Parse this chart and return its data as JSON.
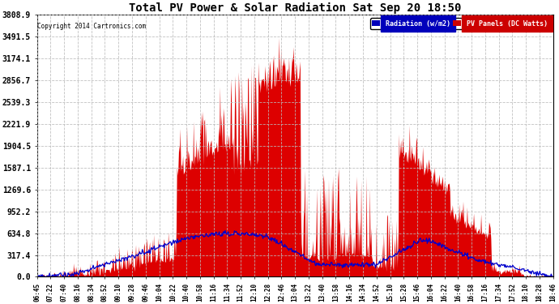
{
  "title": "Total PV Power & Solar Radiation Sat Sep 20 18:50",
  "copyright": "Copyright 2014 Cartronics.com",
  "background_color": "#ffffff",
  "plot_bg_color": "#ffffff",
  "grid_color": "#bbbbbb",
  "legend_radiation_label": "Radiation (w/m2)",
  "legend_pv_label": "PV Panels (DC Watts)",
  "legend_radiation_bg": "#0000bb",
  "legend_pv_bg": "#cc0000",
  "y_ticks": [
    0.0,
    317.4,
    634.8,
    952.2,
    1269.6,
    1587.1,
    1904.5,
    2221.9,
    2539.3,
    2856.7,
    3174.1,
    3491.5,
    3808.9
  ],
  "y_max": 3808.9,
  "pv_color": "#dd0000",
  "radiation_color": "#0000cc",
  "x_tick_labels": [
    "06:45",
    "07:22",
    "07:40",
    "08:16",
    "08:34",
    "08:52",
    "09:10",
    "09:28",
    "09:46",
    "10:04",
    "10:22",
    "10:40",
    "10:58",
    "11:16",
    "11:34",
    "11:52",
    "12:10",
    "12:28",
    "12:46",
    "13:04",
    "13:22",
    "13:40",
    "13:58",
    "14:16",
    "14:34",
    "14:52",
    "15:10",
    "15:28",
    "15:46",
    "16:04",
    "16:22",
    "16:40",
    "16:58",
    "17:16",
    "17:34",
    "17:52",
    "18:10",
    "18:28",
    "18:46"
  ]
}
